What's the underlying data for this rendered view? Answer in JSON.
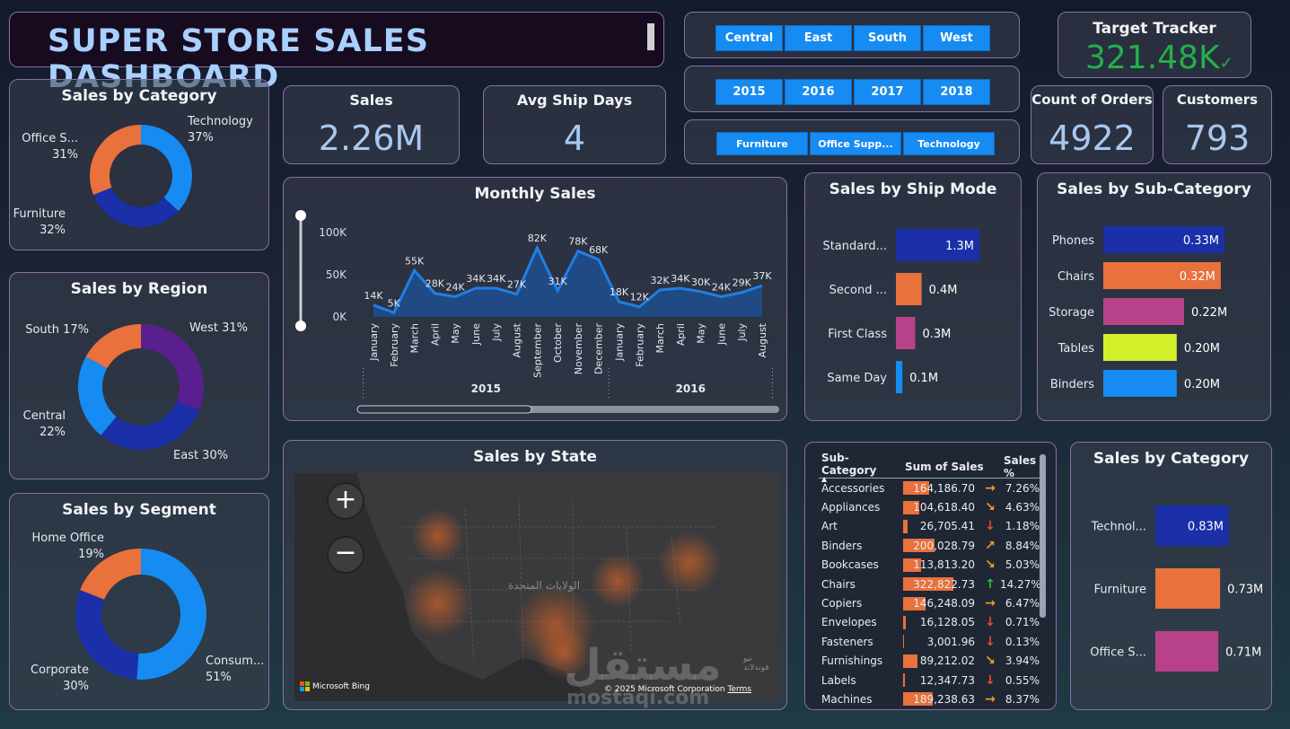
{
  "header": {
    "title": "SUPER STORE SALES DASHBOARD"
  },
  "slicers": {
    "regions": [
      "Central",
      "East",
      "South",
      "West"
    ],
    "years": [
      "2015",
      "2016",
      "2017",
      "2018"
    ],
    "categories": [
      "Furniture",
      "Office Supp...",
      "Technology"
    ]
  },
  "kpis": {
    "target": {
      "label": "Target Tracker",
      "value": "321.48K",
      "color": "#22b04b"
    },
    "sales": {
      "label": "Sales",
      "value": "2.26M"
    },
    "ship_days": {
      "label": "Avg Ship Days",
      "value": "4"
    },
    "orders": {
      "label": "Count of Orders",
      "value": "4922"
    },
    "customers": {
      "label": "Customers",
      "value": "793"
    }
  },
  "colors": {
    "accent": "#168bf2",
    "navy": "#1a2fa8",
    "orange": "#e8713c",
    "purple": "#5a1f8f",
    "magenta": "#b8428a",
    "lime": "#d4f02a",
    "border": "#8a6fa8"
  },
  "map": {
    "title": "Sales by State",
    "country_label": "الولايات المتحدة",
    "credit": "Microsoft Bing",
    "copyright": "© 2025 Microsoft Corporation",
    "terms": "Terms",
    "watermark_ar": "مستقل",
    "watermark_en": "mostaqi.com",
    "corner_ar": "نيو فوندلاند"
  },
  "table": {
    "headers": [
      "Sub-Category",
      "Sum of Sales",
      "Sales %"
    ],
    "rows": [
      {
        "name": "Accessories",
        "sales": "164,186.70",
        "value": 164186.7,
        "trend": "flat",
        "pct": "7.26%"
      },
      {
        "name": "Appliances",
        "sales": "104,618.40",
        "value": 104618.4,
        "trend": "down-right",
        "pct": "4.63%"
      },
      {
        "name": "Art",
        "sales": "26,705.41",
        "value": 26705.41,
        "trend": "down",
        "pct": "1.18%"
      },
      {
        "name": "Binders",
        "sales": "200,028.79",
        "value": 200028.79,
        "trend": "up-right",
        "pct": "8.84%"
      },
      {
        "name": "Bookcases",
        "sales": "113,813.20",
        "value": 113813.2,
        "trend": "down-right",
        "pct": "5.03%"
      },
      {
        "name": "Chairs",
        "sales": "322,822.73",
        "value": 322822.73,
        "trend": "up",
        "pct": "14.27%"
      },
      {
        "name": "Copiers",
        "sales": "146,248.09",
        "value": 146248.09,
        "trend": "flat",
        "pct": "6.47%"
      },
      {
        "name": "Envelopes",
        "sales": "16,128.05",
        "value": 16128.05,
        "trend": "down",
        "pct": "0.71%"
      },
      {
        "name": "Fasteners",
        "sales": "3,001.96",
        "value": 3001.96,
        "trend": "down",
        "pct": "0.13%"
      },
      {
        "name": "Furnishings",
        "sales": "89,212.02",
        "value": 89212.02,
        "trend": "down-right",
        "pct": "3.94%"
      },
      {
        "name": "Labels",
        "sales": "12,347.73",
        "value": 12347.73,
        "trend": "down",
        "pct": "0.55%"
      },
      {
        "name": "Machines",
        "sales": "189,238.63",
        "value": 189238.63,
        "trend": "flat",
        "pct": "8.37%"
      }
    ]
  },
  "chart_data": [
    {
      "id": "cat_donut",
      "type": "pie",
      "title": "Sales by Category",
      "labels": [
        [
          "Technology",
          "37%"
        ],
        [
          "Furniture",
          "32%"
        ],
        [
          "Office S...",
          "31%"
        ]
      ],
      "values": [
        37,
        32,
        31
      ],
      "colors": [
        "#168bf2",
        "#1a2fa8",
        "#e8713c"
      ]
    },
    {
      "id": "region_donut",
      "type": "pie",
      "title": "Sales by Region",
      "labels": [
        [
          "West 31%"
        ],
        [
          "East 30%"
        ],
        [
          "Central",
          "22%"
        ],
        [
          "South 17%"
        ]
      ],
      "values": [
        31,
        30,
        22,
        17
      ],
      "colors": [
        "#5a1f8f",
        "#1a2fa8",
        "#168bf2",
        "#e8713c"
      ]
    },
    {
      "id": "segment_donut",
      "type": "pie",
      "title": "Sales by Segment",
      "labels": [
        [
          "Consum...",
          "51%"
        ],
        [
          "Corporate",
          "30%"
        ],
        [
          "Home Office",
          "19%"
        ]
      ],
      "values": [
        51,
        30,
        19
      ],
      "colors": [
        "#168bf2",
        "#1a2fa8",
        "#e8713c"
      ]
    },
    {
      "id": "monthly",
      "type": "area",
      "title": "Monthly Sales",
      "categories": [
        "January",
        "February",
        "March",
        "April",
        "May",
        "June",
        "July",
        "August",
        "September",
        "October",
        "November",
        "December",
        "January",
        "February",
        "March",
        "April",
        "May",
        "June",
        "July",
        "August"
      ],
      "values": [
        14,
        5,
        55,
        28,
        24,
        34,
        34,
        27,
        82,
        31,
        78,
        68,
        18,
        12,
        32,
        34,
        30,
        24,
        29,
        37
      ],
      "labels": [
        "14K",
        "5K",
        "55K",
        "28K",
        "24K",
        "34K",
        "34K",
        "27K",
        "82K",
        "31K",
        "78K",
        "68K",
        "18K",
        "12K",
        "32K",
        "34K",
        "30K",
        "24K",
        "29K",
        "37K"
      ],
      "groups": [
        {
          "label": "2015",
          "count": 12
        },
        {
          "label": "2016",
          "count": 8
        }
      ],
      "ticks": [
        "0K",
        "50K",
        "100K"
      ],
      "ylim": [
        0,
        100
      ],
      "color": "#1f7fe6"
    },
    {
      "id": "shipmode",
      "type": "bar",
      "title": "Sales by Ship Mode",
      "categories": [
        "Standard...",
        "Second ...",
        "First Class",
        "Same Day"
      ],
      "values": [
        1.3,
        0.4,
        0.3,
        0.1
      ],
      "labels": [
        "1.3M",
        "0.4M",
        "0.3M",
        "0.1M"
      ],
      "colors": [
        "#1a2fa8",
        "#e8713c",
        "#b8428a",
        "#168bf2"
      ]
    },
    {
      "id": "subcat",
      "type": "bar",
      "title": "Sales by Sub-Category",
      "categories": [
        "Phones",
        "Chairs",
        "Storage",
        "Tables",
        "Binders"
      ],
      "values": [
        0.33,
        0.32,
        0.22,
        0.2,
        0.2
      ],
      "labels": [
        "0.33M",
        "0.32M",
        "0.22M",
        "0.20M",
        "0.20M"
      ],
      "colors": [
        "#1a2fa8",
        "#e8713c",
        "#b8428a",
        "#d4f02a",
        "#168bf2"
      ]
    },
    {
      "id": "cat_bar",
      "type": "bar",
      "title": "Sales by Category",
      "categories": [
        "Technol...",
        "Furniture",
        "Office S..."
      ],
      "values": [
        0.83,
        0.73,
        0.71
      ],
      "labels": [
        "0.83M",
        "0.73M",
        "0.71M"
      ],
      "colors": [
        "#1a2fa8",
        "#e8713c",
        "#b8428a"
      ]
    }
  ]
}
